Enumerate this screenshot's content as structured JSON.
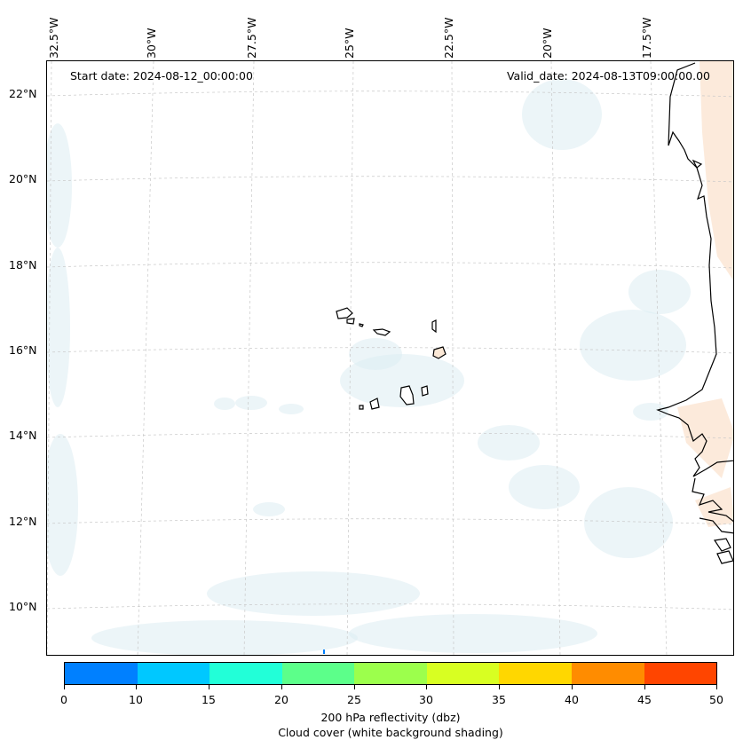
{
  "map": {
    "start_date": "Start date: 2024-08-12_00:00:00",
    "valid_date": "Valid_date: 2024-08-13T09:00:00.00",
    "lon_labels": [
      "32.5°W",
      "30°W",
      "27.5°W",
      "25°W",
      "22.5°W",
      "20°W",
      "17.5°W"
    ],
    "lat_labels": [
      "22°N",
      "20°N",
      "18°N",
      "16°N",
      "14°N",
      "12°N",
      "10°N"
    ],
    "features": [
      "cape-verde-islands",
      "west-africa-coastline",
      "light-cloud-cover-shading"
    ]
  },
  "colorbar": {
    "ticks": [
      "0",
      "10",
      "15",
      "20",
      "25",
      "30",
      "35",
      "40",
      "45",
      "50"
    ],
    "colors": [
      "#0080ff",
      "#00c8ff",
      "#22ffd8",
      "#5cff8a",
      "#9cff4c",
      "#d8ff22",
      "#ffd700",
      "#ff8c00",
      "#ff4500"
    ],
    "label": "200 hPa reflectivity (dbz)",
    "sublabel": "Cloud cover (white background shading)"
  }
}
